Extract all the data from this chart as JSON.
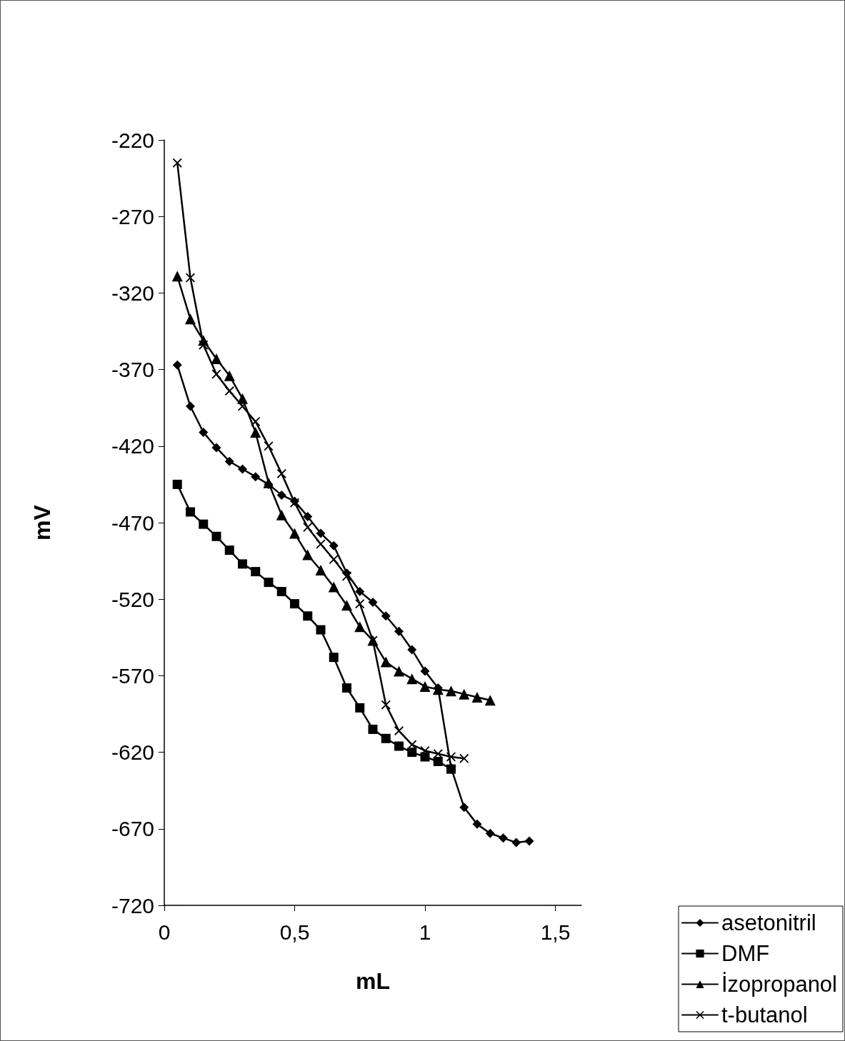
{
  "chart_data": {
    "type": "line",
    "xlabel": "mL",
    "ylabel": "mV",
    "xlim": [
      0,
      1.6
    ],
    "xticks": [
      0,
      {
        "value": 0.5,
        "label": "0,5"
      },
      1,
      {
        "value": 1.5,
        "label": "1,5"
      }
    ],
    "ylim": [
      -720,
      -220
    ],
    "yticks": [
      -720,
      -670,
      -620,
      -570,
      -520,
      -470,
      -420,
      -370,
      -320,
      -270,
      -220
    ],
    "grid": false,
    "legend": "bottom right",
    "line_style": "solid",
    "series": [
      {
        "name": "asetonitril",
        "color": "#000000",
        "marker": "diamond",
        "x": [
          0.05,
          0.1,
          0.15,
          0.2,
          0.25,
          0.3,
          0.35,
          0.4,
          0.45,
          0.5,
          0.55,
          0.6,
          0.65,
          0.7,
          0.75,
          0.8,
          0.85,
          0.9,
          0.95,
          1.0,
          1.05,
          1.1,
          1.15,
          1.2,
          1.25,
          1.3,
          1.35,
          1.4
        ],
        "values": [
          -367,
          -394,
          -411,
          -421,
          -430,
          -435,
          -440,
          -445,
          -452,
          -456,
          -466,
          -477,
          -485,
          -503,
          -515,
          -522,
          -531,
          -541,
          -553,
          -567,
          -578,
          -630,
          -656,
          -667,
          -673,
          -676,
          -679,
          -678
        ]
      },
      {
        "name": "DMF",
        "color": "#000000",
        "marker": "square",
        "x": [
          0.05,
          0.1,
          0.15,
          0.2,
          0.25,
          0.3,
          0.35,
          0.4,
          0.45,
          0.5,
          0.55,
          0.6,
          0.65,
          0.7,
          0.75,
          0.8,
          0.85,
          0.9,
          0.95,
          1.0,
          1.05,
          1.1
        ],
        "values": [
          -445,
          -463,
          -471,
          -479,
          -488,
          -497,
          -502,
          -509,
          -515,
          -523,
          -531,
          -540,
          -558,
          -578,
          -591,
          -605,
          -611,
          -616,
          -620,
          -623,
          -626,
          -631
        ]
      },
      {
        "name": "İzopropanol",
        "color": "#000000",
        "marker": "triangle",
        "x": [
          0.05,
          0.1,
          0.15,
          0.2,
          0.25,
          0.3,
          0.35,
          0.4,
          0.45,
          0.5,
          0.55,
          0.6,
          0.65,
          0.7,
          0.75,
          0.8,
          0.85,
          0.9,
          0.95,
          1.0,
          1.05,
          1.1,
          1.15,
          1.2,
          1.25
        ],
        "values": [
          -309,
          -337,
          -351,
          -363,
          -374,
          -389,
          -411,
          -444,
          -465,
          -477,
          -491,
          -501,
          -512,
          -524,
          -538,
          -547,
          -561,
          -567,
          -572,
          -577,
          -579,
          -580,
          -582,
          -584,
          -586
        ]
      },
      {
        "name": "t-butanol",
        "color": "#000000",
        "marker": "cross",
        "x": [
          0.05,
          0.1,
          0.15,
          0.2,
          0.25,
          0.3,
          0.35,
          0.4,
          0.45,
          0.5,
          0.55,
          0.6,
          0.65,
          0.7,
          0.75,
          0.8,
          0.85,
          0.9,
          0.95,
          1.0,
          1.05,
          1.1,
          1.15
        ],
        "values": [
          -235,
          -310,
          -354,
          -373,
          -384,
          -394,
          -404,
          -420,
          -438,
          -457,
          -473,
          -484,
          -494,
          -505,
          -523,
          -547,
          -589,
          -606,
          -615,
          -619,
          -621,
          -623,
          -624
        ]
      }
    ]
  }
}
